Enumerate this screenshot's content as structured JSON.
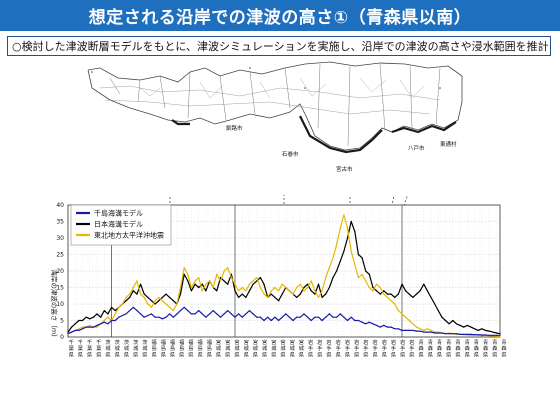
{
  "header": {
    "title": "想定される沿岸での津波の高さ①（青森県以南）",
    "subtitle": "○検討した津波断層モデルをもとに、津波シミュレーションを実施し、沿岸での津波の高さや浸水範囲を推計"
  },
  "map": {
    "labels": [
      {
        "id": "kushiro",
        "text": "釧路市"
      },
      {
        "id": "ishikari",
        "text": "石巻市"
      },
      {
        "id": "miyako",
        "text": "宮古市"
      },
      {
        "id": "hachinohe",
        "text": "八戸市"
      },
      {
        "id": "higashidori",
        "text": "東通村"
      }
    ]
  },
  "chart_data": {
    "type": "line",
    "ylabel": "海岸の津波の高さ（m）",
    "ylim": [
      0,
      40
    ],
    "yticks": [
      0,
      5,
      10,
      15,
      20,
      25,
      30,
      35,
      40
    ],
    "n_points": 120,
    "legend": [
      {
        "name": "千島海溝モデル",
        "color": "#1a1aa6"
      },
      {
        "name": "日本海溝モデル",
        "color": "#000000"
      },
      {
        "name": "東北地方太平洋沖地震",
        "color": "#e6b800"
      }
    ],
    "series": [
      {
        "name": "日本海溝モデル",
        "color": "#000000",
        "values": [
          1.5,
          3,
          4,
          5,
          5,
          6,
          5.5,
          6,
          7,
          6,
          8,
          7,
          9,
          8,
          9,
          10,
          11,
          12,
          14,
          13,
          16,
          13,
          12,
          11,
          10,
          11,
          12,
          13,
          12,
          11,
          10,
          13,
          19,
          17,
          14,
          16,
          15,
          16,
          14,
          17,
          15,
          14,
          18,
          17,
          16,
          19,
          14,
          12,
          13,
          12,
          14,
          16,
          17,
          18,
          16,
          12,
          13,
          12,
          11,
          13,
          15,
          14,
          13,
          12,
          13,
          15,
          16,
          14,
          13,
          16,
          12,
          13,
          15,
          18,
          20,
          23,
          26,
          30,
          35,
          32,
          25,
          24,
          20,
          19,
          15,
          14,
          13,
          14,
          13,
          13,
          12,
          13,
          16,
          14,
          13,
          12,
          13,
          14,
          16,
          14,
          12,
          10,
          8,
          6,
          5,
          4,
          5,
          4,
          3.5,
          3,
          3.5,
          3,
          2.5,
          2,
          2.5,
          2,
          1.8,
          1.5,
          1.2,
          1
        ]
      },
      {
        "name": "東北地方太平洋沖地震",
        "color": "#e6b800",
        "values": [
          1,
          1.5,
          2,
          2.5,
          3,
          3,
          3.5,
          3,
          3,
          4,
          5,
          6,
          5,
          7,
          9,
          10,
          12,
          13,
          15,
          17,
          13,
          12,
          10,
          9,
          11,
          12,
          11,
          10,
          9,
          8,
          10,
          15,
          21,
          19,
          15,
          17,
          18,
          14,
          16,
          17,
          15,
          19,
          17,
          20,
          21,
          18,
          16,
          14,
          15,
          14,
          16,
          17,
          18,
          15,
          13,
          12,
          14,
          15,
          14,
          16,
          15,
          14,
          13,
          15,
          16,
          14,
          15,
          17,
          14,
          12,
          14,
          18,
          21,
          24,
          28,
          33,
          37,
          33,
          26,
          22,
          18,
          19,
          17,
          15,
          14,
          16,
          15,
          13,
          12,
          11,
          10,
          8,
          7,
          6,
          5,
          4,
          3,
          2.5,
          2,
          2.5,
          2,
          1.5,
          1.5,
          1.2,
          1,
          1.2,
          1,
          0.8,
          0.8,
          0.7,
          0.6,
          0.5,
          0.6,
          0.5,
          0.4,
          0.5,
          0.4,
          0.3,
          0.3,
          0.2
        ]
      },
      {
        "name": "千島海溝モデル",
        "color": "#1a1aa6",
        "values": [
          1,
          1.5,
          2,
          2,
          2.5,
          3,
          3,
          3,
          3.5,
          4,
          4.5,
          4,
          5,
          5,
          6,
          6.5,
          7,
          8,
          9,
          8,
          7,
          6,
          6.5,
          7,
          6,
          6,
          5.5,
          6,
          7,
          6,
          7,
          8,
          9,
          8,
          7,
          7,
          8,
          7,
          6,
          7,
          8,
          7,
          6,
          7,
          8,
          7,
          6,
          7,
          6,
          7,
          8,
          7,
          6,
          6,
          5,
          6,
          5,
          6,
          5,
          6,
          7,
          6,
          5,
          6,
          6,
          7,
          6,
          5,
          6,
          6,
          5,
          6,
          7,
          6,
          6,
          7,
          6,
          5,
          6,
          5,
          5,
          4.5,
          4,
          4.5,
          4,
          3.5,
          3,
          3.5,
          3,
          3,
          2.5,
          2.5,
          2,
          2,
          2,
          2,
          1.8,
          1.8,
          1.5,
          1.5,
          1.5,
          1.2,
          1.2,
          1.2,
          1,
          1,
          1,
          1,
          0.8,
          0.8,
          0.8,
          0.8,
          0.7,
          0.7,
          0.6,
          0.6,
          0.5,
          0.5,
          0.5,
          0.5
        ]
      }
    ],
    "x_labels": [
      "千葉県",
      "千葉県",
      "千葉県",
      "千葉県",
      "茨城県",
      "茨城県",
      "茨城県",
      "茨城県",
      "茨城県",
      "福島県",
      "福島県",
      "福島県",
      "福島県",
      "福島県",
      "福島県",
      "福島県",
      "宮城県",
      "宮城県",
      "宮城県",
      "宮城県",
      "宮城県",
      "宮城県",
      "宮城県",
      "宮城県",
      "宮城県",
      "宮城県",
      "岩手県",
      "岩手県",
      "岩手県",
      "岩手県",
      "岩手県",
      "岩手県",
      "岩手県",
      "岩手県",
      "岩手県",
      "岩手県",
      "岩手県",
      "岩手県",
      "青森県",
      "青森県",
      "青森県",
      "青森県",
      "青森県",
      "青森県",
      "青森県",
      "青森県",
      "青森県",
      "青森県"
    ]
  }
}
